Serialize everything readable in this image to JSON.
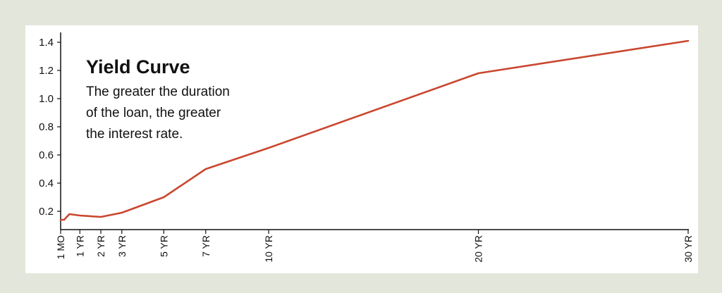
{
  "colors": {
    "background": "#e3e6da",
    "panel": "#ffffff",
    "line": "#c9472f",
    "axis": "#111111"
  },
  "chart_data": {
    "type": "line",
    "title": "Yield Curve",
    "subtitle": [
      "The greater the duration",
      "of the loan, the greater",
      "the interest rate."
    ],
    "xlabel": "",
    "ylabel": "",
    "x_unit": "years",
    "xlim": [
      0.0833,
      30
    ],
    "ylim": [
      0.1,
      1.45
    ],
    "yticks": [
      0.2,
      0.4,
      0.6,
      0.8,
      1.0,
      1.2,
      1.4
    ],
    "ytick_labels": [
      "0.2",
      "0.4",
      "0.6",
      "0.8",
      "1.0",
      "1.2",
      "1.4"
    ],
    "xticks": [
      {
        "x": 0.0833,
        "label": "1 MO"
      },
      {
        "x": 1,
        "label": "1 YR"
      },
      {
        "x": 2,
        "label": "2 YR"
      },
      {
        "x": 3,
        "label": "3 YR"
      },
      {
        "x": 5,
        "label": "5 YR"
      },
      {
        "x": 7,
        "label": "7 YR"
      },
      {
        "x": 10,
        "label": "10 YR"
      },
      {
        "x": 20,
        "label": "20 YR"
      },
      {
        "x": 30,
        "label": "30 YR"
      }
    ],
    "grid": false,
    "series": [
      {
        "x": [
          0.0833,
          0.25,
          0.5,
          1,
          2,
          3,
          5,
          7,
          10,
          20,
          30
        ],
        "values": [
          0.14,
          0.14,
          0.18,
          0.17,
          0.16,
          0.19,
          0.3,
          0.5,
          0.65,
          1.18,
          1.41
        ]
      }
    ]
  }
}
